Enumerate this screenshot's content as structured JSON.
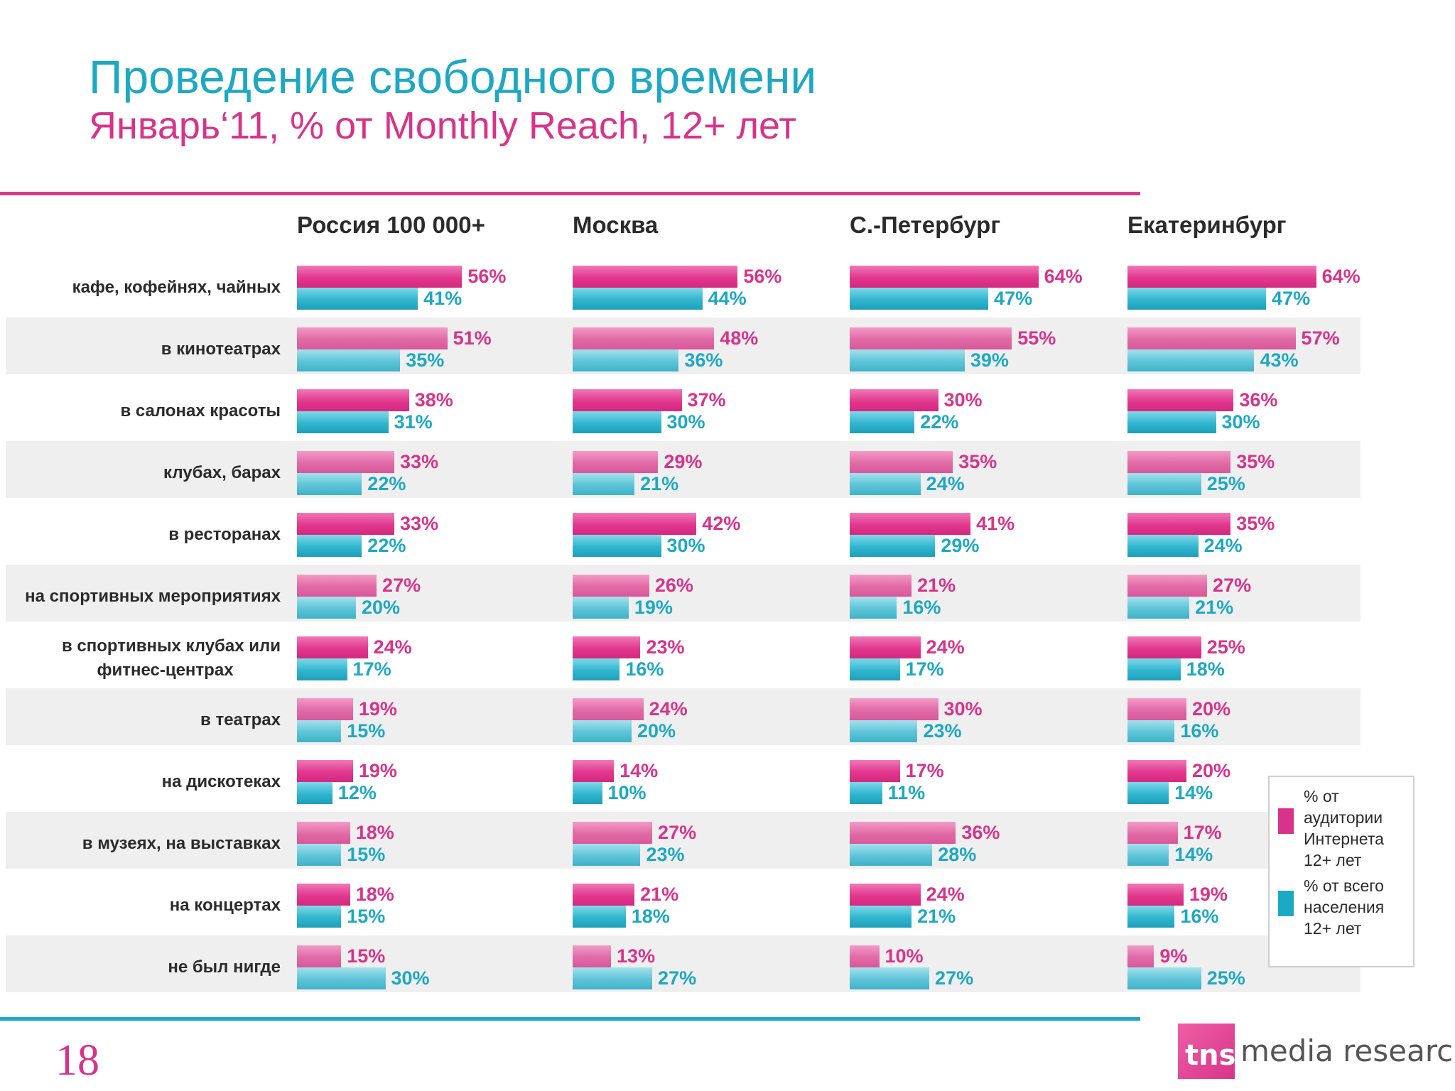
{
  "header": {
    "title": "Проведение свободного времени",
    "subtitle": "Январь‘11, % от Monthly Reach, 12+ лет"
  },
  "page_number": "18",
  "logo": {
    "mark": "tns",
    "text": "media research"
  },
  "legend": [
    {
      "label": "% от аудитории Интернета 12+ лет",
      "color": "#d8338a"
    },
    {
      "label": "% от всего населения 12+ лет",
      "color": "#1da8c3"
    }
  ],
  "chart_data": {
    "type": "bar",
    "orientation": "horizontal",
    "panels": [
      "Россия 100 000+",
      "Москва",
      "С.-Петербург",
      "Екатеринбург"
    ],
    "categories": [
      "кафе, кофейнях, чайных",
      "в кинотеатрах",
      "в салонах красоты",
      "клубах, барах",
      "в ресторанах",
      "на спортивных мероприятиях",
      "в спортивных клубах или фитнес-центрах",
      "в театрах",
      "на дискотеках",
      "в музеях, на выставках",
      "на концертах",
      "не был нигде"
    ],
    "series": [
      {
        "name": "% от аудитории Интернета 12+ лет",
        "color": "#d8338a",
        "values": [
          [
            56,
            51,
            38,
            33,
            33,
            27,
            24,
            19,
            19,
            18,
            18,
            15
          ],
          [
            56,
            48,
            37,
            29,
            42,
            26,
            23,
            24,
            14,
            27,
            21,
            13
          ],
          [
            64,
            55,
            30,
            35,
            41,
            21,
            24,
            30,
            17,
            36,
            24,
            10
          ],
          [
            64,
            57,
            36,
            35,
            35,
            27,
            25,
            20,
            20,
            17,
            19,
            9
          ]
        ]
      },
      {
        "name": "% от всего населения 12+ лет",
        "color": "#1da8c3",
        "values": [
          [
            41,
            35,
            31,
            22,
            22,
            20,
            17,
            15,
            12,
            15,
            15,
            30
          ],
          [
            44,
            36,
            30,
            21,
            30,
            19,
            16,
            20,
            10,
            23,
            18,
            27
          ],
          [
            47,
            39,
            22,
            24,
            29,
            16,
            17,
            23,
            11,
            28,
            21,
            27
          ],
          [
            47,
            43,
            30,
            25,
            24,
            21,
            18,
            16,
            14,
            14,
            16,
            25
          ]
        ]
      }
    ],
    "value_suffix": "%"
  }
}
